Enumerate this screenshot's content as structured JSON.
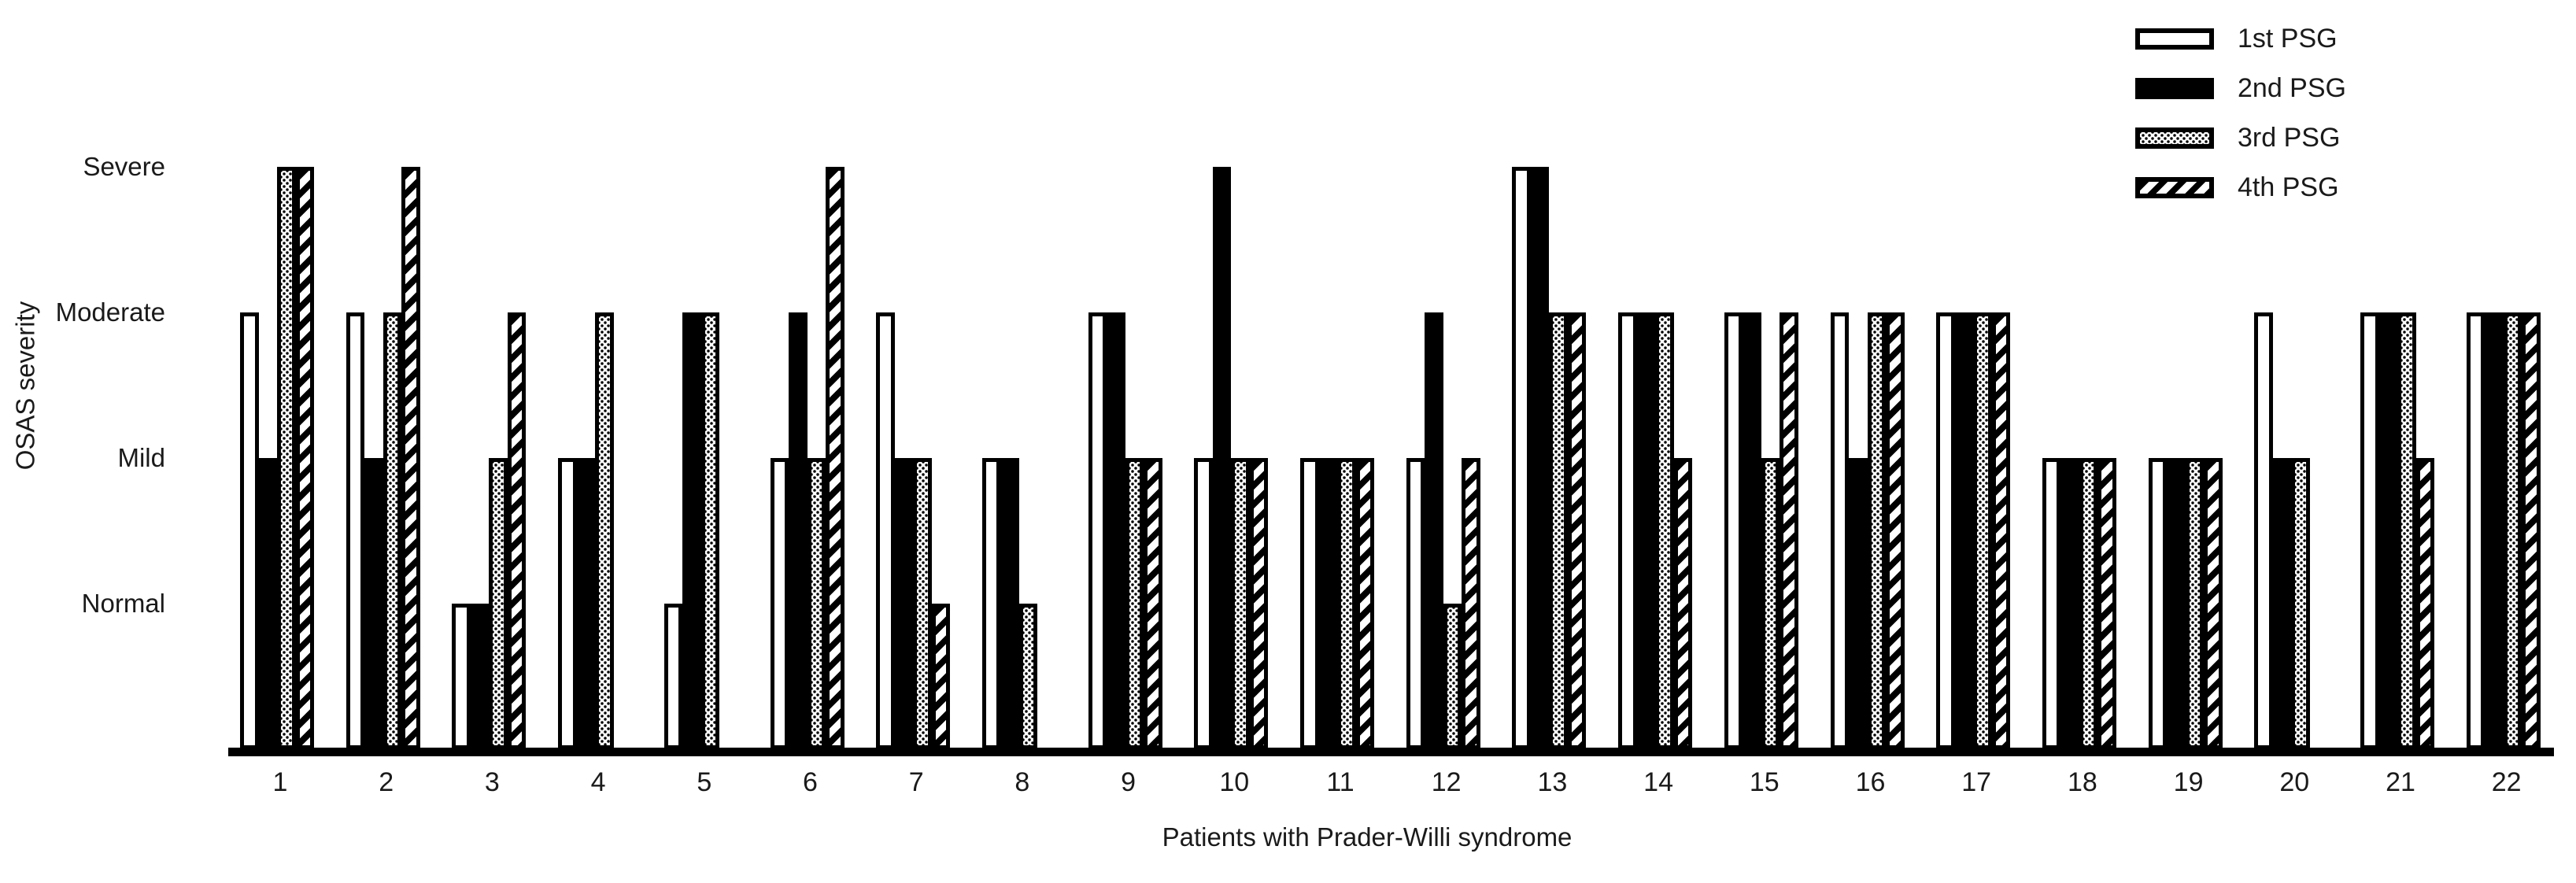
{
  "figure": {
    "background": "#ffffff",
    "foreground": "#000000",
    "text_color": "#1a1a1a"
  },
  "chart_data": {
    "type": "bar",
    "title": "",
    "xlabel": "Patients with Prader-Willi syndrome",
    "ylabel": "OSAS severity",
    "grid": false,
    "legend_position": "top-right",
    "y_axis": {
      "kind": "categorical",
      "levels": [
        {
          "value": 1,
          "label": "Normal"
        },
        {
          "value": 2,
          "label": "Mild"
        },
        {
          "value": 3,
          "label": "Moderate"
        },
        {
          "value": 4,
          "label": "Severe"
        }
      ],
      "null_means": "no bar drawn for that PSG"
    },
    "categories": [
      "1",
      "2",
      "3",
      "4",
      "5",
      "6",
      "7",
      "8",
      "9",
      "10",
      "11",
      "12",
      "13",
      "14",
      "15",
      "16",
      "17",
      "18",
      "19",
      "20",
      "21",
      "22"
    ],
    "series": [
      {
        "name": "1st PSG",
        "pattern": "white",
        "values": [
          3,
          3,
          1,
          2,
          1,
          2,
          3,
          2,
          3,
          2,
          2,
          2,
          4,
          3,
          3,
          3,
          3,
          2,
          2,
          3,
          3,
          3
        ]
      },
      {
        "name": "2nd PSG",
        "pattern": "solid-black",
        "values": [
          2,
          2,
          1,
          2,
          3,
          3,
          2,
          2,
          3,
          4,
          2,
          3,
          4,
          3,
          3,
          2,
          3,
          2,
          2,
          2,
          3,
          3
        ]
      },
      {
        "name": "3rd PSG",
        "pattern": "dotted",
        "values": [
          4,
          3,
          2,
          3,
          3,
          2,
          2,
          1,
          2,
          2,
          2,
          1,
          3,
          3,
          2,
          3,
          3,
          2,
          2,
          2,
          3,
          3
        ]
      },
      {
        "name": "4th PSG",
        "pattern": "diagonal-hatch",
        "values": [
          4,
          4,
          3,
          null,
          null,
          4,
          1,
          null,
          2,
          2,
          2,
          2,
          3,
          2,
          3,
          3,
          3,
          2,
          2,
          null,
          2,
          3
        ]
      }
    ]
  },
  "legend": {
    "items": [
      {
        "label": "1st PSG",
        "pattern": "white"
      },
      {
        "label": "2nd PSG",
        "pattern": "solid-black"
      },
      {
        "label": "3rd PSG",
        "pattern": "dotted"
      },
      {
        "label": "4th PSG",
        "pattern": "diagonal-hatch"
      }
    ]
  }
}
